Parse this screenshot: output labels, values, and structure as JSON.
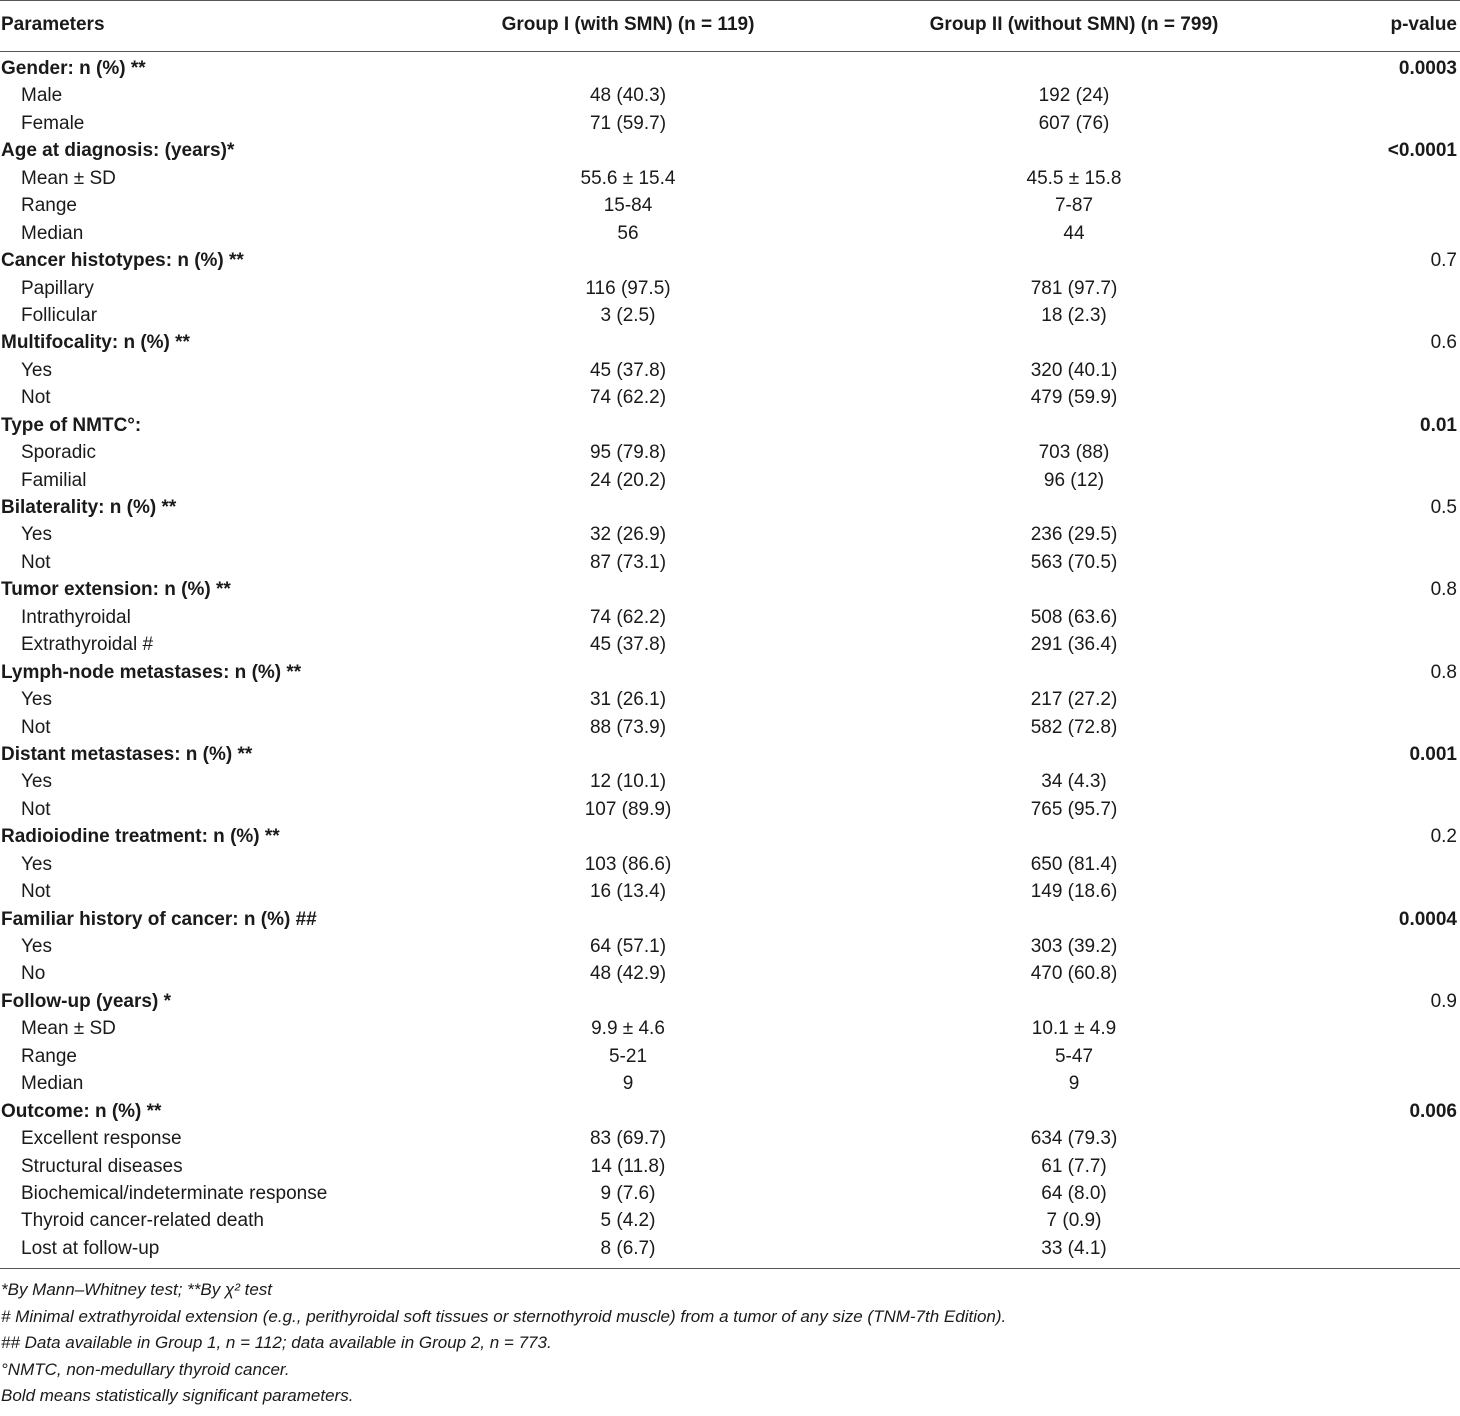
{
  "header": {
    "parameters": "Parameters",
    "group1": "Group I (with SMN) (n = 119)",
    "group2": "Group II (without SMN) (n = 799)",
    "pvalue": "p-value"
  },
  "rows": [
    {
      "type": "sec",
      "label": "Gender: n (%) **",
      "g1": "",
      "g2": "",
      "p": "0.0003",
      "bold": true
    },
    {
      "type": "sub",
      "label": "Male",
      "g1": "48 (40.3)",
      "g2": "192 (24)",
      "p": ""
    },
    {
      "type": "sub",
      "label": "Female",
      "g1": "71 (59.7)",
      "g2": "607 (76)",
      "p": ""
    },
    {
      "type": "sec",
      "label": "Age at diagnosis: (years)*",
      "g1": "",
      "g2": "",
      "p": "<0.0001",
      "bold": true
    },
    {
      "type": "sub",
      "label": "Mean ± SD",
      "g1": "55.6 ± 15.4",
      "g2": "45.5 ± 15.8",
      "p": ""
    },
    {
      "type": "sub",
      "label": "Range",
      "g1": "15-84",
      "g2": "7-87",
      "p": ""
    },
    {
      "type": "sub",
      "label": "Median",
      "g1": "56",
      "g2": "44",
      "p": ""
    },
    {
      "type": "sec",
      "label": "Cancer histotypes: n (%) **",
      "g1": "",
      "g2": "",
      "p": "0.7",
      "bold": false
    },
    {
      "type": "sub",
      "label": "Papillary",
      "g1": "116 (97.5)",
      "g2": "781 (97.7)",
      "p": ""
    },
    {
      "type": "sub",
      "label": "Follicular",
      "g1": "3 (2.5)",
      "g2": "18 (2.3)",
      "p": ""
    },
    {
      "type": "sec",
      "label": "Multifocality: n (%) **",
      "g1": "",
      "g2": "",
      "p": "0.6",
      "bold": false
    },
    {
      "type": "sub",
      "label": "Yes",
      "g1": "45 (37.8)",
      "g2": "320 (40.1)",
      "p": ""
    },
    {
      "type": "sub",
      "label": "Not",
      "g1": "74 (62.2)",
      "g2": "479 (59.9)",
      "p": ""
    },
    {
      "type": "sec",
      "label": "Type of NMTC°:",
      "g1": "",
      "g2": "",
      "p": "0.01",
      "bold": true
    },
    {
      "type": "sub",
      "label": "Sporadic",
      "g1": "95 (79.8)",
      "g2": "703 (88)",
      "p": ""
    },
    {
      "type": "sub",
      "label": "Familial",
      "g1": "24 (20.2)",
      "g2": "96 (12)",
      "p": ""
    },
    {
      "type": "sec",
      "label": "Bilaterality: n (%) **",
      "g1": "",
      "g2": "",
      "p": "0.5",
      "bold": false
    },
    {
      "type": "sub",
      "label": "Yes",
      "g1": "32 (26.9)",
      "g2": "236 (29.5)",
      "p": ""
    },
    {
      "type": "sub",
      "label": "Not",
      "g1": "87 (73.1)",
      "g2": "563 (70.5)",
      "p": ""
    },
    {
      "type": "sec",
      "label": "Tumor extension: n (%) **",
      "g1": "",
      "g2": "",
      "p": "0.8",
      "bold": false
    },
    {
      "type": "sub",
      "label": "Intrathyroidal",
      "g1": "74 (62.2)",
      "g2": "508 (63.6)",
      "p": ""
    },
    {
      "type": "sub",
      "label": "Extrathyroidal #",
      "g1": "45 (37.8)",
      "g2": "291 (36.4)",
      "p": ""
    },
    {
      "type": "sec",
      "label": "Lymph-node metastases: n (%) **",
      "g1": "",
      "g2": "",
      "p": "0.8",
      "bold": false
    },
    {
      "type": "sub",
      "label": "Yes",
      "g1": "31 (26.1)",
      "g2": "217 (27.2)",
      "p": ""
    },
    {
      "type": "sub",
      "label": "Not",
      "g1": "88 (73.9)",
      "g2": "582 (72.8)",
      "p": ""
    },
    {
      "type": "sec",
      "label": "Distant metastases: n (%) **",
      "g1": "",
      "g2": "",
      "p": "0.001",
      "bold": true
    },
    {
      "type": "sub",
      "label": "Yes",
      "g1": "12 (10.1)",
      "g2": "34 (4.3)",
      "p": ""
    },
    {
      "type": "sub",
      "label": "Not",
      "g1": "107 (89.9)",
      "g2": "765 (95.7)",
      "p": ""
    },
    {
      "type": "sec",
      "label": "Radioiodine treatment: n (%) **",
      "g1": "",
      "g2": "",
      "p": "0.2",
      "bold": false
    },
    {
      "type": "sub",
      "label": "Yes",
      "g1": "103 (86.6)",
      "g2": "650 (81.4)",
      "p": ""
    },
    {
      "type": "sub",
      "label": "Not",
      "g1": "16 (13.4)",
      "g2": "149 (18.6)",
      "p": ""
    },
    {
      "type": "sec",
      "label": "Familiar history of cancer: n (%) ##",
      "g1": "",
      "g2": "",
      "p": "0.0004",
      "bold": true
    },
    {
      "type": "sub",
      "label": "Yes",
      "g1": "64 (57.1)",
      "g2": "303 (39.2)",
      "p": ""
    },
    {
      "type": "sub",
      "label": "No",
      "g1": "48 (42.9)",
      "g2": "470 (60.8)",
      "p": ""
    },
    {
      "type": "sec",
      "label": "Follow-up (years) *",
      "g1": "",
      "g2": "",
      "p": "0.9",
      "bold": false
    },
    {
      "type": "sub",
      "label": "Mean ± SD",
      "g1": "9.9 ± 4.6",
      "g2": "10.1 ± 4.9",
      "p": ""
    },
    {
      "type": "sub",
      "label": "Range",
      "g1": "5-21",
      "g2": "5-47",
      "p": ""
    },
    {
      "type": "sub",
      "label": "Median",
      "g1": "9",
      "g2": "9",
      "p": ""
    },
    {
      "type": "sec",
      "label": "Outcome: n (%) **",
      "g1": "",
      "g2": "",
      "p": "0.006",
      "bold": true
    },
    {
      "type": "sub",
      "label": "Excellent response",
      "g1": "83 (69.7)",
      "g2": "634 (79.3)",
      "p": ""
    },
    {
      "type": "sub",
      "label": "Structural diseases",
      "g1": "14 (11.8)",
      "g2": "61 (7.7)",
      "p": ""
    },
    {
      "type": "sub",
      "label": "Biochemical/indeterminate response",
      "g1": "9 (7.6)",
      "g2": "64 (8.0)",
      "p": ""
    },
    {
      "type": "sub",
      "label": "Thyroid cancer-related death",
      "g1": "5 (4.2)",
      "g2": "7 (0.9)",
      "p": ""
    },
    {
      "type": "sub",
      "label": "Lost at follow-up",
      "g1": "8 (6.7)",
      "g2": "33 (4.1)",
      "p": ""
    }
  ],
  "footnotes": [
    "*By Mann–Whitney test; **By χ² test",
    "# Minimal extrathyroidal extension (e.g., perithyroidal soft tissues or sternothyroid muscle) from a tumor of any size (TNM-7th Edition).",
    "## Data available in Group 1, n = 112; data available in Group 2, n = 773.",
    "°NMTC, non-medullary thyroid cancer.",
    "Bold means statistically significant parameters."
  ]
}
